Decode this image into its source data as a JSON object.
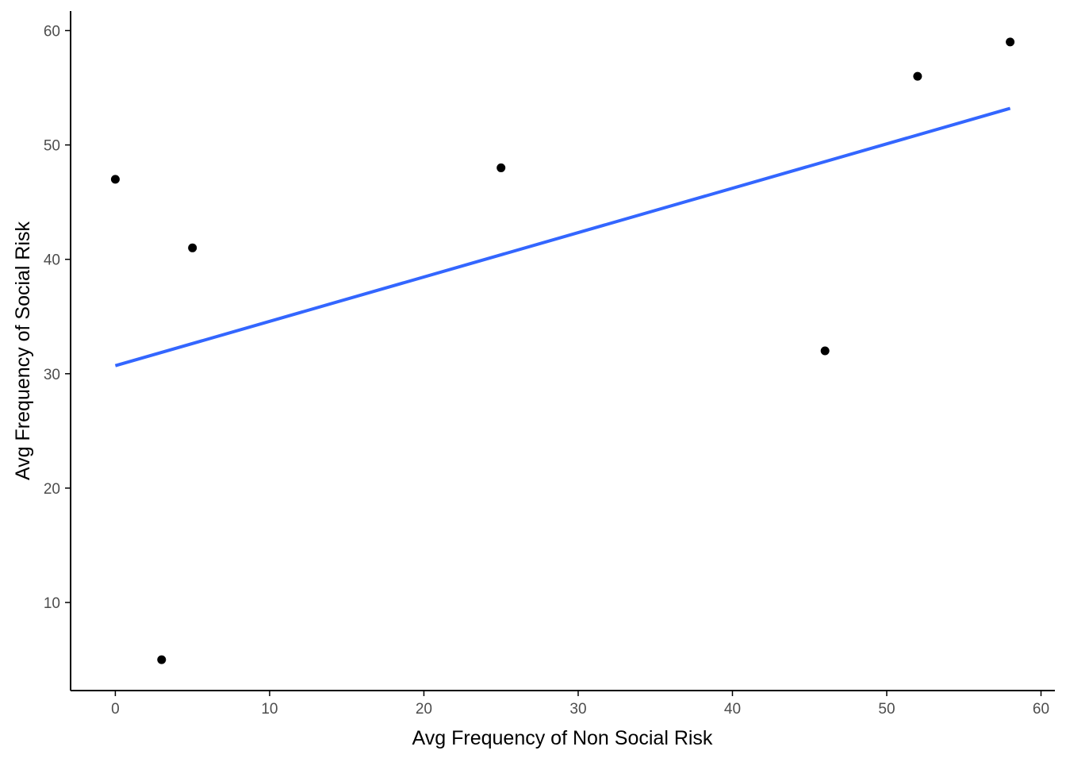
{
  "chart_data": {
    "type": "scatter",
    "title": "",
    "xlabel": "Avg Frequency of Non Social Risk",
    "ylabel": "Avg Frequency of Social Risk",
    "xlim": [
      -2.9,
      60.9
    ],
    "ylim": [
      2.3,
      61.7
    ],
    "x_ticks": [
      0,
      10,
      20,
      30,
      40,
      50,
      60
    ],
    "y_ticks": [
      10,
      20,
      30,
      40,
      50,
      60
    ],
    "grid": false,
    "legend": "none",
    "points": [
      {
        "x": 0,
        "y": 47
      },
      {
        "x": 3,
        "y": 5
      },
      {
        "x": 5,
        "y": 41
      },
      {
        "x": 25,
        "y": 48
      },
      {
        "x": 46,
        "y": 32
      },
      {
        "x": 52,
        "y": 56
      },
      {
        "x": 58,
        "y": 59
      }
    ],
    "trend_line": {
      "method": "linear fit",
      "x": [
        0,
        58
      ],
      "y": [
        30.7,
        53.2
      ]
    },
    "colors": {
      "points": "#000000",
      "trend_line": "#3366ff",
      "axis": "#000000",
      "tick_label": "#4d4d4d"
    }
  }
}
